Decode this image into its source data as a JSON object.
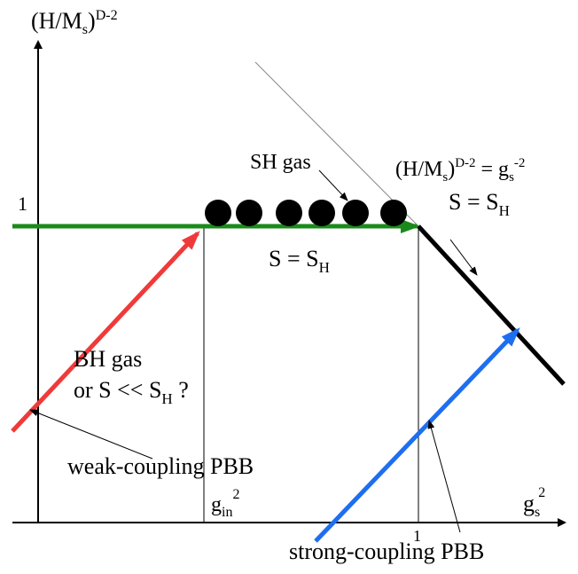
{
  "axes": {
    "y_label": {
      "base": "(H/M",
      "sub": "s",
      "tail": ")",
      "sup": "D-2"
    },
    "x_label": {
      "base": "g",
      "sub": "s",
      "sup": "2"
    },
    "y_tick": "1",
    "x_tick": "1",
    "x_mark": {
      "base": "g",
      "sub": "in",
      "sup": "2"
    }
  },
  "labels": {
    "sh_gas": "SH gas",
    "s_eq_sh_mid": {
      "base": "S = S",
      "sub": "H"
    },
    "boundary_eq": {
      "lhs": "(H/M",
      "lhs_sub": "s",
      "lhs_tail": ")",
      "lhs_sup": "D-2",
      "eq": " = g",
      "rhs_sub": "s",
      "rhs_sup": "-2"
    },
    "s_eq_sh_right": {
      "base": "S = S",
      "sub": "H"
    },
    "bh_gas_line1": "BH gas",
    "bh_gas_line2": {
      "base": "or S << S",
      "sub": "H",
      "tail": " ?"
    },
    "weak_coupling": "weak-coupling PBB",
    "strong_coupling": "strong-coupling PBB"
  },
  "colors": {
    "axis": "#000000",
    "green_arrow": "#1a8a1a",
    "red_arrow": "#f03a3a",
    "blue_arrow": "#1e6ef0",
    "boundary": "#000000",
    "dots": "#000000",
    "thin_line": "#888888"
  },
  "dots_count": 6
}
